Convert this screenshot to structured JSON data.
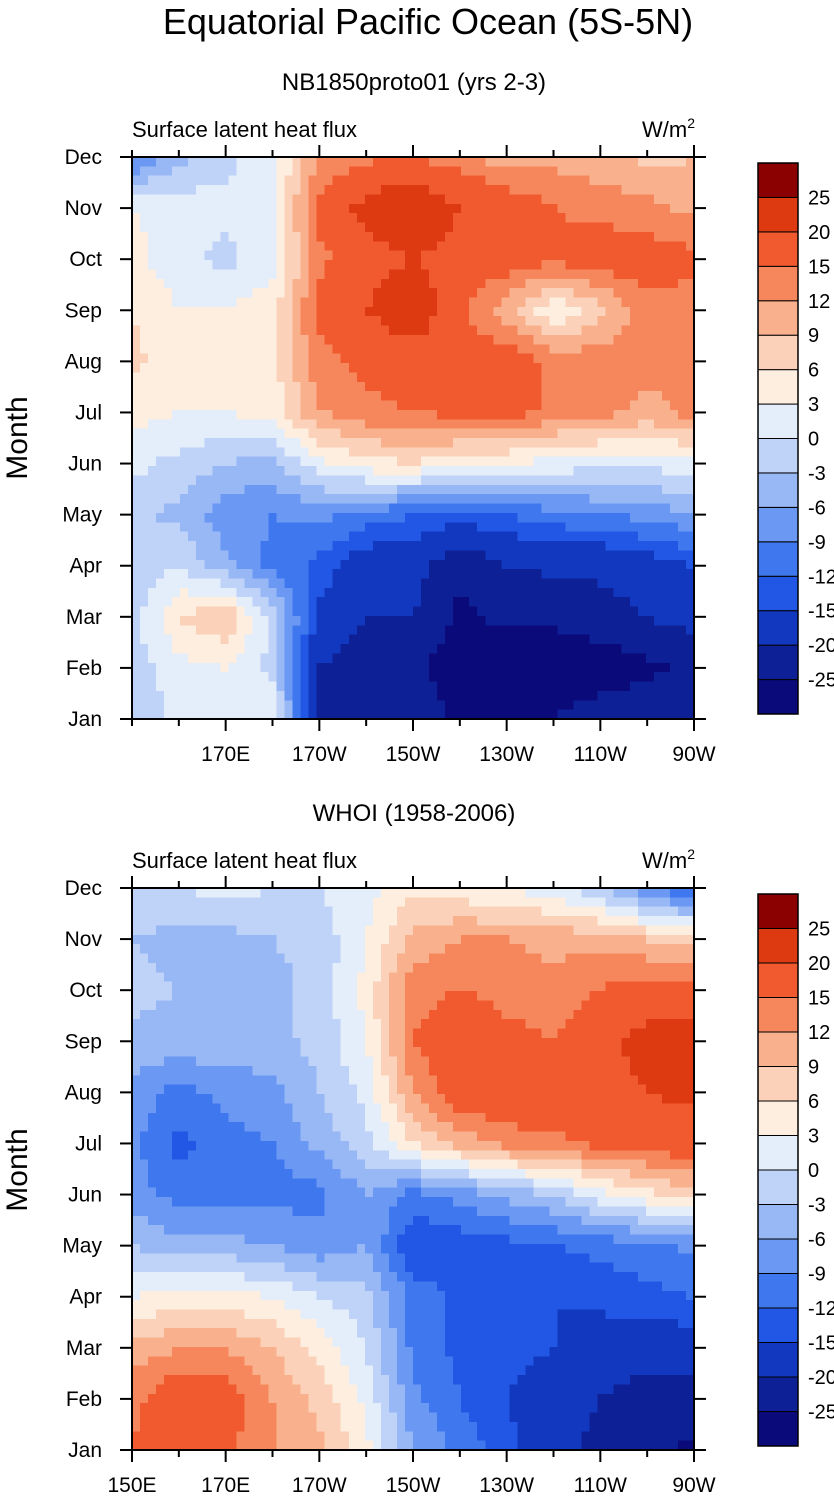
{
  "title": "Equatorial Pacific Ocean (5S-5N)",
  "palette": [
    "#0a0a7a",
    "#0d2096",
    "#1238c0",
    "#2257e6",
    "#3f78ee",
    "#6b98f2",
    "#97b7f5",
    "#bed3f7",
    "#e4eefa",
    "#fdeee0",
    "#fbd2b9",
    "#f9b08c",
    "#f6875c",
    "#f15a2e",
    "#dd3a12",
    "#c02a0a",
    "#8b0000"
  ],
  "color_levels": [
    "-25",
    "-20",
    "-15",
    "-12",
    "-9",
    "-6",
    "-3",
    "0",
    "3",
    "6",
    "9",
    "12",
    "15",
    "20",
    "25"
  ],
  "chart_data": [
    {
      "type": "heatmap",
      "title": "NB1850proto01 (yrs 2-3)",
      "left_label": "Surface latent heat flux",
      "right_label_base": "W/m",
      "right_label_exp": "2",
      "ylabel": "Month",
      "months": [
        "Jan",
        "Feb",
        "Mar",
        "Apr",
        "May",
        "Jun",
        "Jul",
        "Aug",
        "Sep",
        "Oct",
        "Nov",
        "Dec"
      ],
      "xlim": [
        150,
        270
      ],
      "x_ticks": [
        {
          "value": 170,
          "label": "170E"
        },
        {
          "value": 190,
          "label": "170W"
        },
        {
          "value": 210,
          "label": "150W"
        },
        {
          "value": 230,
          "label": "130W"
        },
        {
          "value": 250,
          "label": "110W"
        },
        {
          "value": 270,
          "label": "90W"
        }
      ],
      "x": [
        150,
        160,
        170,
        180,
        190,
        200,
        210,
        220,
        230,
        240,
        250,
        260,
        270
      ],
      "values": [
        [
          -3,
          1,
          2,
          3,
          -20,
          -23,
          -22,
          -26,
          -26,
          -25,
          -22,
          -22,
          -21
        ],
        [
          -2,
          2,
          3,
          -1,
          -20,
          -23,
          -24,
          -28,
          -28,
          -29,
          -28,
          -26,
          -24
        ],
        [
          -1,
          6,
          9,
          -1,
          -16,
          -20,
          -20,
          -26,
          -24,
          -24,
          -22,
          -20,
          -18
        ],
        [
          -3,
          0,
          -5,
          -10,
          -13,
          -18,
          -18,
          -24,
          -20,
          -19,
          -19,
          -17,
          -15
        ],
        [
          -2,
          -4,
          -8,
          -9,
          -8,
          -10,
          -12,
          -13,
          -12,
          -10,
          -9,
          -8,
          -6
        ],
        [
          1,
          -1,
          -3,
          -4,
          2,
          5,
          6,
          4,
          3,
          2,
          1,
          1,
          2
        ],
        [
          4,
          3,
          3,
          4,
          12,
          14,
          15,
          16,
          17,
          14,
          13,
          11,
          13
        ],
        [
          7,
          4,
          4,
          5,
          14,
          16,
          17,
          17,
          18,
          14,
          14,
          13,
          12
        ],
        [
          6,
          3,
          3,
          5,
          16,
          20,
          24,
          16,
          10,
          3,
          8,
          14,
          13
        ],
        [
          4,
          1,
          -1,
          2,
          14,
          18,
          20,
          18,
          17,
          16,
          17,
          17,
          16
        ],
        [
          3,
          2,
          1,
          3,
          16,
          22,
          25,
          20,
          18,
          15,
          14,
          13,
          11
        ],
        [
          -10,
          -4,
          -1,
          2,
          12,
          14,
          15,
          13,
          10,
          11,
          10,
          8,
          9
        ]
      ]
    },
    {
      "type": "heatmap",
      "title": "WHOI (1958-2006)",
      "left_label": "Surface latent heat flux",
      "right_label_base": "W/m",
      "right_label_exp": "2",
      "ylabel": "Month",
      "months": [
        "Jan",
        "Feb",
        "Mar",
        "Apr",
        "May",
        "Jun",
        "Jul",
        "Aug",
        "Sep",
        "Oct",
        "Nov",
        "Dec"
      ],
      "xlim": [
        150,
        270
      ],
      "x_ticks": [
        {
          "value": 150,
          "label": "150E"
        },
        {
          "value": 170,
          "label": "170E"
        },
        {
          "value": 190,
          "label": "170W"
        },
        {
          "value": 210,
          "label": "150W"
        },
        {
          "value": 230,
          "label": "130W"
        },
        {
          "value": 250,
          "label": "110W"
        },
        {
          "value": 270,
          "label": "90W"
        }
      ],
      "x": [
        150,
        160,
        170,
        180,
        190,
        200,
        210,
        220,
        230,
        240,
        250,
        260,
        270
      ],
      "values": [
        [
          15,
          18,
          16,
          12,
          10,
          4,
          -6,
          -10,
          -14,
          -18,
          -22,
          -24,
          -26
        ],
        [
          14,
          18,
          17,
          12,
          8,
          2,
          -8,
          -12,
          -15,
          -17,
          -20,
          -22,
          -22
        ],
        [
          10,
          12,
          12,
          9,
          5,
          0,
          -10,
          -13,
          -14,
          -15,
          -17,
          -18,
          -17
        ],
        [
          3,
          4,
          4,
          3,
          0,
          -2,
          -10,
          -13,
          -15,
          -15,
          -14,
          -13,
          -12
        ],
        [
          -3,
          -5,
          -5,
          -6,
          -8,
          -6,
          -15,
          -14,
          -13,
          -12,
          -11,
          -10,
          -8
        ],
        [
          -8,
          -10,
          -10,
          -10,
          -10,
          -6,
          -10,
          -8,
          -5,
          -3,
          2,
          5,
          8
        ],
        [
          -8,
          -13,
          -10,
          -9,
          -5,
          -1,
          6,
          10,
          13,
          14,
          16,
          17,
          18
        ],
        [
          -7,
          -10,
          -8,
          -7,
          -3,
          1,
          12,
          18,
          19,
          18,
          19,
          20,
          21
        ],
        [
          -4,
          -4,
          -4,
          -4,
          -2,
          3,
          15,
          18,
          16,
          15,
          18,
          22,
          23
        ],
        [
          -2,
          -3,
          -4,
          -4,
          -2,
          4,
          14,
          15,
          14,
          13,
          15,
          17,
          17
        ],
        [
          -3,
          -4,
          -4,
          -3,
          -2,
          3,
          10,
          12,
          12,
          11,
          11,
          9,
          7
        ],
        [
          -1,
          0,
          1,
          0,
          0,
          2,
          5,
          4,
          3,
          1,
          -3,
          -9,
          -13
        ]
      ]
    }
  ]
}
